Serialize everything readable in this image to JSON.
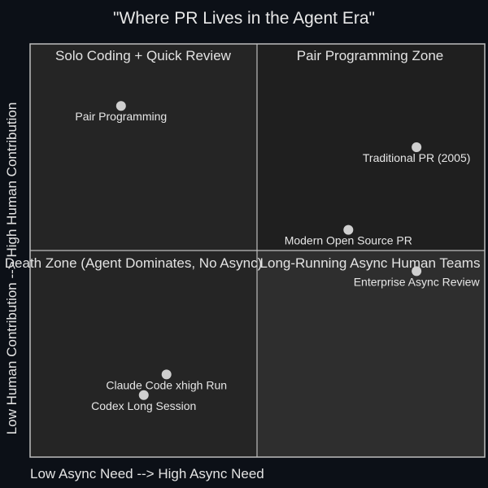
{
  "chart_data": {
    "type": "scatter",
    "title": "\"Where PR Lives in the Agent Era\"",
    "xlabel": "Low Async Need --> High Async Need",
    "ylabel": "Low Human Contribution --> High Human Contribution",
    "xlim": [
      0,
      1
    ],
    "ylim": [
      0,
      1
    ],
    "grid": false,
    "quadrants": [
      {
        "label": "Solo Coding + Quick Review",
        "position": "top-left"
      },
      {
        "label": "Pair Programming Zone",
        "position": "top-right"
      },
      {
        "label": "Death Zone (Agent Dominates, No Async)",
        "position": "bottom-left"
      },
      {
        "label": "Long-Running Async Human Teams",
        "position": "bottom-right"
      }
    ],
    "points": [
      {
        "label": "Pair Programming",
        "x": 0.2,
        "y": 0.85
      },
      {
        "label": "Traditional PR (2005)",
        "x": 0.85,
        "y": 0.75
      },
      {
        "label": "Modern Open Source PR",
        "x": 0.7,
        "y": 0.55
      },
      {
        "label": "Enterprise Async Review",
        "x": 0.85,
        "y": 0.45
      },
      {
        "label": "Claude Code xhigh Run",
        "x": 0.3,
        "y": 0.2
      },
      {
        "label": "Codex Long Session",
        "x": 0.25,
        "y": 0.15
      }
    ]
  },
  "colors": {
    "background": "#0c1017",
    "quadrant_top_left": "#252525",
    "quadrant_top_right": "#1f1f1f",
    "quadrant_bottom_left": "#252525",
    "quadrant_bottom_right": "#2e2e2e",
    "frame": "#bdbdbd",
    "point": "#cfcfcf",
    "text": "#e6e6e6"
  }
}
